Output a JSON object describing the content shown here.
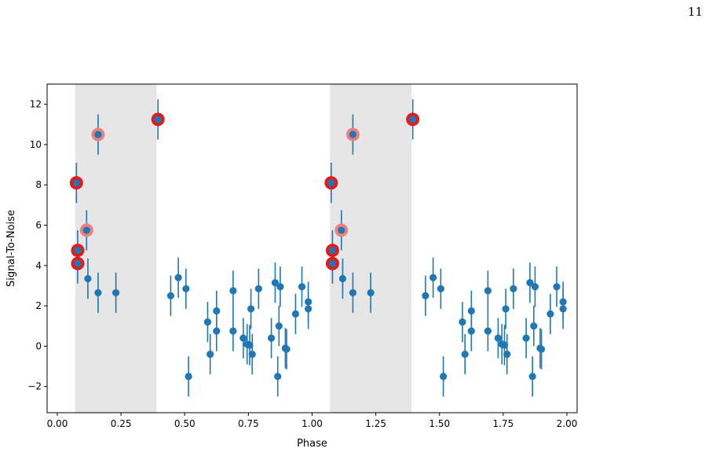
{
  "page": {
    "number": "11"
  },
  "colors": {
    "points": "#1f77b4",
    "highlight_strong": "#e41a1c",
    "highlight_soft": "#f08080",
    "shade": "#e6e6e6"
  },
  "chart_data": {
    "type": "scatter",
    "xlabel": "Phase",
    "ylabel": "Signal-To-Noise",
    "xlim": [
      -0.04,
      2.04
    ],
    "ylim": [
      -3.3,
      13.0
    ],
    "grid": false,
    "xticks": [
      0.0,
      0.25,
      0.5,
      0.75,
      1.0,
      1.25,
      1.5,
      1.75,
      2.0
    ],
    "xtick_labels": [
      "0.00",
      "0.25",
      "0.50",
      "0.75",
      "1.00",
      "1.25",
      "1.50",
      "1.75",
      "2.00"
    ],
    "yticks": [
      -2,
      0,
      2,
      4,
      6,
      8,
      10,
      12
    ],
    "ytick_labels": [
      "−2",
      "0",
      "2",
      "4",
      "6",
      "8",
      "10",
      "12"
    ],
    "shaded_regions": [
      [
        0.07,
        0.39
      ],
      [
        1.07,
        1.39
      ]
    ],
    "error": 1.0,
    "points": [
      {
        "x": 0.075,
        "y": 8.1,
        "h": "strong"
      },
      {
        "x": 0.08,
        "y": 4.75,
        "h": "strong"
      },
      {
        "x": 0.08,
        "y": 4.1,
        "h": "strong"
      },
      {
        "x": 0.115,
        "y": 5.75,
        "h": "soft"
      },
      {
        "x": 0.16,
        "y": 10.5,
        "h": "soft"
      },
      {
        "x": 0.395,
        "y": 11.25,
        "h": "strong"
      },
      {
        "x": 0.12,
        "y": 3.35
      },
      {
        "x": 0.16,
        "y": 2.65
      },
      {
        "x": 0.23,
        "y": 2.65
      },
      {
        "x": 0.445,
        "y": 2.5
      },
      {
        "x": 0.475,
        "y": 3.4
      },
      {
        "x": 0.505,
        "y": 2.85
      },
      {
        "x": 0.515,
        "y": -1.5
      },
      {
        "x": 0.59,
        "y": 1.2
      },
      {
        "x": 0.6,
        "y": -0.4
      },
      {
        "x": 0.625,
        "y": 1.75
      },
      {
        "x": 0.625,
        "y": 0.75
      },
      {
        "x": 0.69,
        "y": 2.75
      },
      {
        "x": 0.69,
        "y": 0.75
      },
      {
        "x": 0.73,
        "y": 0.4
      },
      {
        "x": 0.745,
        "y": 0.1
      },
      {
        "x": 0.755,
        "y": 0.05
      },
      {
        "x": 0.76,
        "y": 1.85
      },
      {
        "x": 0.765,
        "y": -0.4
      },
      {
        "x": 0.79,
        "y": 2.85
      },
      {
        "x": 0.84,
        "y": 0.4
      },
      {
        "x": 0.855,
        "y": 3.15
      },
      {
        "x": 0.865,
        "y": -1.5
      },
      {
        "x": 0.87,
        "y": 1.0
      },
      {
        "x": 0.875,
        "y": 2.95
      },
      {
        "x": 0.895,
        "y": -0.1
      },
      {
        "x": 0.9,
        "y": -0.15
      },
      {
        "x": 0.935,
        "y": 1.6
      },
      {
        "x": 0.96,
        "y": 2.95
      },
      {
        "x": 0.985,
        "y": 2.2
      },
      {
        "x": 0.985,
        "y": 1.85
      },
      {
        "x": 1.075,
        "y": 8.1,
        "h": "strong"
      },
      {
        "x": 1.08,
        "y": 4.75,
        "h": "strong"
      },
      {
        "x": 1.08,
        "y": 4.1,
        "h": "strong"
      },
      {
        "x": 1.115,
        "y": 5.75,
        "h": "soft"
      },
      {
        "x": 1.16,
        "y": 10.5,
        "h": "soft"
      },
      {
        "x": 1.395,
        "y": 11.25,
        "h": "strong"
      },
      {
        "x": 1.12,
        "y": 3.35
      },
      {
        "x": 1.16,
        "y": 2.65
      },
      {
        "x": 1.23,
        "y": 2.65
      },
      {
        "x": 1.445,
        "y": 2.5
      },
      {
        "x": 1.475,
        "y": 3.4
      },
      {
        "x": 1.505,
        "y": 2.85
      },
      {
        "x": 1.515,
        "y": -1.5
      },
      {
        "x": 1.59,
        "y": 1.2
      },
      {
        "x": 1.6,
        "y": -0.4
      },
      {
        "x": 1.625,
        "y": 1.75
      },
      {
        "x": 1.625,
        "y": 0.75
      },
      {
        "x": 1.69,
        "y": 2.75
      },
      {
        "x": 1.69,
        "y": 0.75
      },
      {
        "x": 1.73,
        "y": 0.4
      },
      {
        "x": 1.745,
        "y": 0.1
      },
      {
        "x": 1.755,
        "y": 0.05
      },
      {
        "x": 1.76,
        "y": 1.85
      },
      {
        "x": 1.765,
        "y": -0.4
      },
      {
        "x": 1.79,
        "y": 2.85
      },
      {
        "x": 1.84,
        "y": 0.4
      },
      {
        "x": 1.855,
        "y": 3.15
      },
      {
        "x": 1.865,
        "y": -1.5
      },
      {
        "x": 1.87,
        "y": 1.0
      },
      {
        "x": 1.875,
        "y": 2.95
      },
      {
        "x": 1.895,
        "y": -0.1
      },
      {
        "x": 1.9,
        "y": -0.15
      },
      {
        "x": 1.935,
        "y": 1.6
      },
      {
        "x": 1.96,
        "y": 2.95
      },
      {
        "x": 1.985,
        "y": 2.2
      },
      {
        "x": 1.985,
        "y": 1.85
      }
    ]
  }
}
